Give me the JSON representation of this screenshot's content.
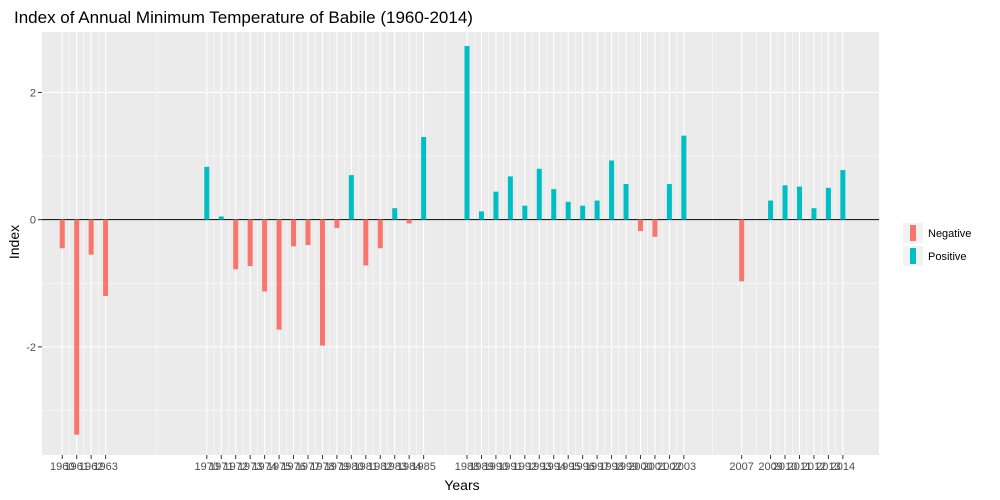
{
  "chart_data": {
    "type": "bar",
    "title": "Index of Annual Minimum Temperature of Babile (1960-2014)",
    "xlabel": "Years",
    "ylabel": "Index",
    "ylim": [
      -3.7,
      2.95
    ],
    "xlim": [
      1958.6,
      2016.5
    ],
    "y_ticks": [
      -2,
      0,
      2
    ],
    "grid": true,
    "legend": {
      "position": "right",
      "entries": [
        {
          "name": "Negative",
          "color": "#F8766D"
        },
        {
          "name": "Positive",
          "color": "#00BFC4"
        }
      ]
    },
    "data": [
      {
        "year": 1960,
        "value": -0.45
      },
      {
        "year": 1961,
        "value": -3.38
      },
      {
        "year": 1962,
        "value": -0.55
      },
      {
        "year": 1963,
        "value": -1.2
      },
      {
        "year": 1970,
        "value": 0.83
      },
      {
        "year": 1971,
        "value": 0.05
      },
      {
        "year": 1972,
        "value": -0.78
      },
      {
        "year": 1973,
        "value": -0.73
      },
      {
        "year": 1974,
        "value": -1.13
      },
      {
        "year": 1975,
        "value": -1.73
      },
      {
        "year": 1976,
        "value": -0.42
      },
      {
        "year": 1977,
        "value": -0.4
      },
      {
        "year": 1978,
        "value": -1.98
      },
      {
        "year": 1979,
        "value": -0.13
      },
      {
        "year": 1980,
        "value": 0.7
      },
      {
        "year": 1981,
        "value": -0.72
      },
      {
        "year": 1982,
        "value": -0.45
      },
      {
        "year": 1983,
        "value": 0.18
      },
      {
        "year": 1984,
        "value": -0.06
      },
      {
        "year": 1985,
        "value": 1.3
      },
      {
        "year": 1988,
        "value": 2.73
      },
      {
        "year": 1989,
        "value": 0.13
      },
      {
        "year": 1990,
        "value": 0.44
      },
      {
        "year": 1991,
        "value": 0.68
      },
      {
        "year": 1992,
        "value": 0.22
      },
      {
        "year": 1993,
        "value": 0.8
      },
      {
        "year": 1994,
        "value": 0.48
      },
      {
        "year": 1995,
        "value": 0.28
      },
      {
        "year": 1996,
        "value": 0.22
      },
      {
        "year": 1997,
        "value": 0.3
      },
      {
        "year": 1998,
        "value": 0.93
      },
      {
        "year": 1999,
        "value": 0.56
      },
      {
        "year": 2000,
        "value": -0.18
      },
      {
        "year": 2001,
        "value": -0.27
      },
      {
        "year": 2002,
        "value": 0.56
      },
      {
        "year": 2003,
        "value": 1.32
      },
      {
        "year": 2007,
        "value": -0.97
      },
      {
        "year": 2009,
        "value": 0.3
      },
      {
        "year": 2010,
        "value": 0.54
      },
      {
        "year": 2011,
        "value": 0.52
      },
      {
        "year": 2012,
        "value": 0.18
      },
      {
        "year": 2013,
        "value": 0.5
      },
      {
        "year": 2014,
        "value": 0.78
      }
    ]
  }
}
